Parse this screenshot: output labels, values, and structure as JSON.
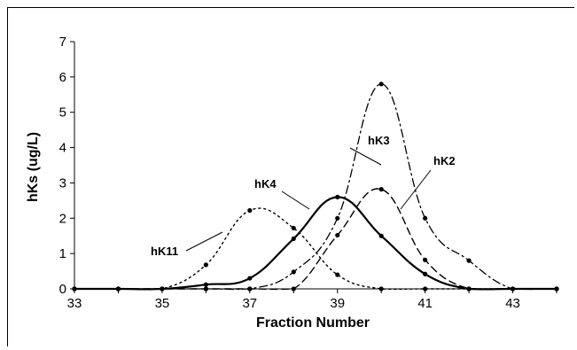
{
  "chart_data": {
    "type": "line",
    "xlabel": "Fraction Number",
    "ylabel": "hKs (ug/L)",
    "xlim": [
      33,
      44
    ],
    "ylim": [
      0,
      7
    ],
    "x_ticks": [
      "33",
      "35",
      "37",
      "39",
      "41",
      "43"
    ],
    "y_ticks": [
      "0",
      "1",
      "2",
      "3",
      "4",
      "5",
      "6",
      "7"
    ],
    "grid": false,
    "legend": "callouts",
    "series": [
      {
        "name": "hK11",
        "style": "dotted",
        "x": [
          33,
          34,
          35,
          36,
          37,
          38,
          39,
          40,
          41,
          42,
          43,
          44
        ],
        "y": [
          0,
          0,
          0,
          0.68,
          2.22,
          1.72,
          0.4,
          0,
          0,
          0,
          0,
          0
        ]
      },
      {
        "name": "hK4",
        "style": "solid",
        "x": [
          33,
          34,
          35,
          36,
          37,
          38,
          39,
          40,
          41,
          42,
          43,
          44
        ],
        "y": [
          0,
          0,
          0,
          0.12,
          0.3,
          1.42,
          2.6,
          1.5,
          0.42,
          0,
          0,
          0
        ]
      },
      {
        "name": "hK3",
        "style": "dash-dot",
        "x": [
          33,
          34,
          35,
          36,
          37,
          38,
          39,
          40,
          41,
          42,
          43,
          44
        ],
        "y": [
          0,
          0,
          0,
          0,
          0,
          0.48,
          2.0,
          5.8,
          2.0,
          0.8,
          0,
          0
        ]
      },
      {
        "name": "hK2",
        "style": "dashed",
        "x": [
          33,
          34,
          35,
          36,
          37,
          38,
          39,
          40,
          41,
          42,
          43,
          44
        ],
        "y": [
          0,
          0,
          0,
          0,
          0,
          0,
          1.52,
          2.82,
          0.82,
          0,
          0,
          0
        ]
      }
    ]
  }
}
